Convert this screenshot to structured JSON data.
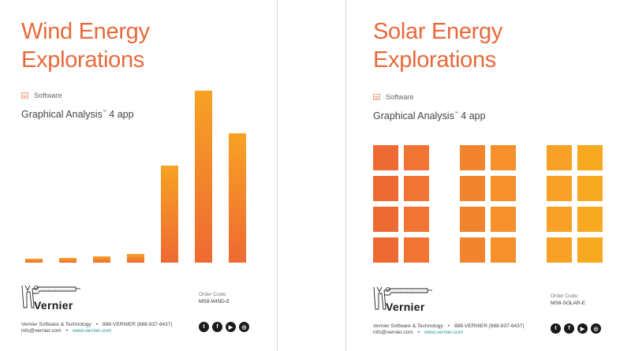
{
  "pages": [
    {
      "title_line1": "Wind Energy",
      "title_line2": "Explorations",
      "category": "Software",
      "app_name": "Graphical Analysis",
      "app_tm": "™",
      "app_suffix": " 4 app",
      "order_label": "Order Code:",
      "order_code": "MS8-WIND-E",
      "company": "Vernier Software & Technology",
      "phone": "888-VERNIER (888-837-6437)",
      "email": "info@vernier.com",
      "website": "www.vernier.com",
      "logo_text": "Vernier",
      "bullet": "•"
    },
    {
      "title_line1": "Solar Energy",
      "title_line2": "Explorations",
      "category": "Software",
      "app_name": "Graphical Analysis",
      "app_tm": "™",
      "app_suffix": " 4 app",
      "order_label": "Order Code:",
      "order_code": "MS8-SOLAR-E",
      "company": "Vernier Software & Technology",
      "phone": "888-VERNIER (888-837-6437)",
      "email": "info@vernier.com",
      "website": "www.vernier.com",
      "logo_text": "Vernier",
      "bullet": "•"
    }
  ],
  "social_icons": [
    "twitter-icon",
    "facebook-icon",
    "youtube-icon",
    "instagram-icon"
  ],
  "social_glyphs": [
    "t",
    "f",
    "▶",
    "◎"
  ],
  "colors": {
    "accent": "#e8693a",
    "bar_bottom": "#ee6a33",
    "bar_top": "#f7a224",
    "link": "#2a9a9a"
  },
  "wind_bars": [
    5,
    6,
    8,
    11,
    123,
    218,
    164
  ],
  "wind_bars_max": 218,
  "solar_grid": {
    "groups": 3,
    "cols_per_group": 2,
    "rows": 4,
    "group_colors": [
      [
        "#ee6a33",
        "#f07433"
      ],
      [
        "#f3842f",
        "#f5902c"
      ],
      [
        "#f7a226",
        "#f8a922"
      ]
    ]
  }
}
